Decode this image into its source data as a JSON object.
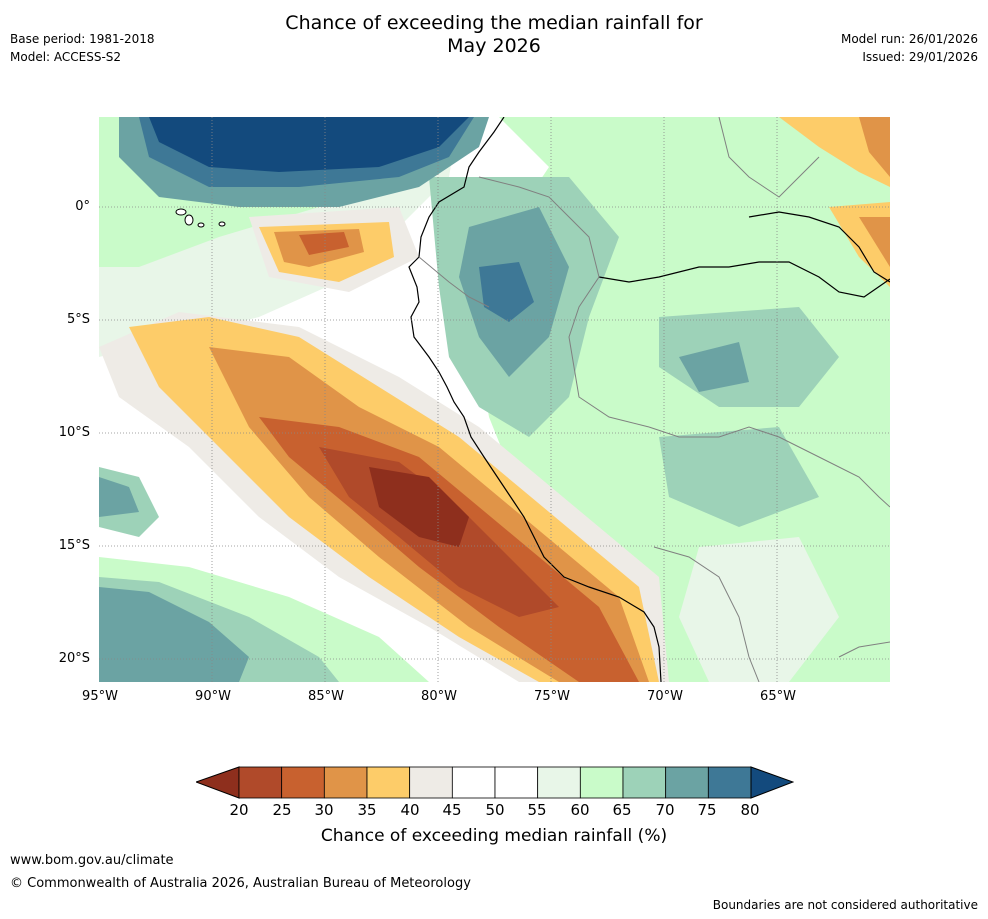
{
  "header": {
    "title_line1": "Chance of exceeding the median rainfall for",
    "title_line2": "May 2026",
    "base_period": "Base period: 1981-2018",
    "model": "Model: ACCESS-S2",
    "model_run": "Model run: 26/01/2026",
    "issued": "Issued: 29/01/2026"
  },
  "map": {
    "lat_ticks": [
      "0°",
      "5°S",
      "10°S",
      "15°S",
      "20°S"
    ],
    "lon_ticks": [
      "95°W",
      "90°W",
      "85°W",
      "80°W",
      "75°W",
      "70°W",
      "65°W"
    ]
  },
  "colorbar": {
    "labels": [
      "20",
      "25",
      "30",
      "35",
      "40",
      "45",
      "50",
      "55",
      "60",
      "65",
      "70",
      "75",
      "80"
    ],
    "colors": [
      "#8e2f1d",
      "#b04a2a",
      "#c8612f",
      "#e09448",
      "#fdcc69",
      "#eeebe6",
      "#ffffff",
      "#ffffff",
      "#e8f6e8",
      "#c9fbc9",
      "#9dd2b8",
      "#6ba3a3",
      "#3e7896",
      "#134a7d"
    ],
    "title": "Chance of exceeding median rainfall (%)"
  },
  "footer": {
    "url": "www.bom.gov.au/climate",
    "copyright": "© Commonwealth of Australia 2026, Australian Bureau of Meteorology",
    "disclaimer": "Boundaries are not considered authoritative"
  }
}
